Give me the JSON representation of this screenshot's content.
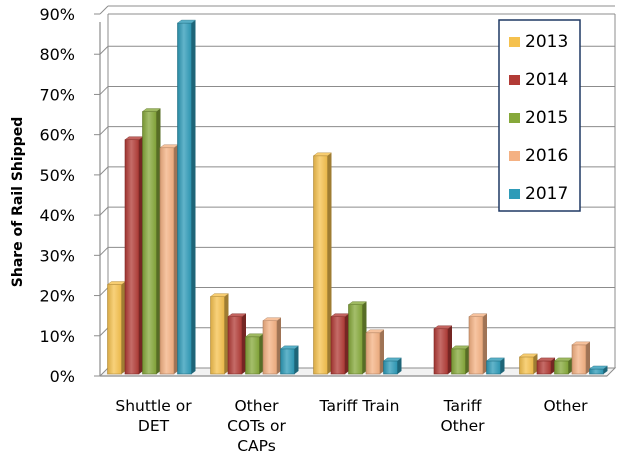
{
  "chart_data": {
    "type": "bar",
    "categories": [
      [
        "Shuttle or",
        "DET"
      ],
      [
        "Other",
        "COTs or",
        "CAPs"
      ],
      [
        "Tariff Train"
      ],
      [
        "Tariff",
        "Other"
      ],
      [
        "Other"
      ]
    ],
    "series": [
      {
        "name": "2013",
        "color": "#F5C14E",
        "values": [
          22,
          19,
          54,
          null,
          4
        ]
      },
      {
        "name": "2014",
        "color": "#B23B36",
        "values": [
          58,
          14,
          14,
          11,
          3
        ]
      },
      {
        "name": "2015",
        "color": "#86A83A",
        "values": [
          65,
          9,
          17,
          6,
          3
        ]
      },
      {
        "name": "2016",
        "color": "#F4B183",
        "values": [
          56,
          13,
          10,
          14,
          7
        ]
      },
      {
        "name": "2017",
        "color": "#2E9BB8",
        "values": [
          87,
          6,
          3,
          3,
          1
        ]
      }
    ],
    "ylabel": "Share of Rail Shipped",
    "ylim": [
      0,
      90
    ],
    "yticks": [
      0,
      10,
      20,
      30,
      40,
      50,
      60,
      70,
      80,
      90
    ],
    "ytick_format": "percent",
    "grid": true,
    "legend_position": "top-right"
  }
}
